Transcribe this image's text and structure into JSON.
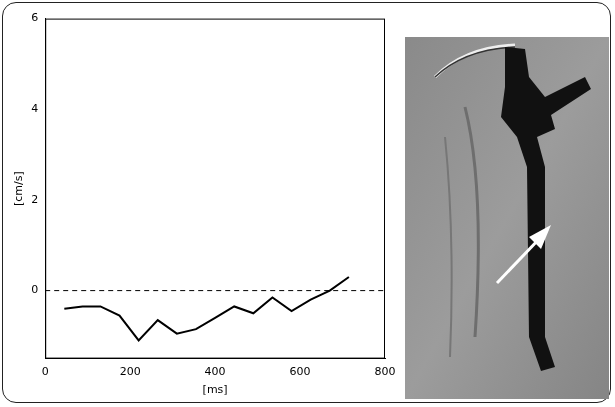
{
  "chart_data": {
    "type": "line",
    "x_label": "[ms]",
    "y_label": "[cm/s]",
    "x": [
      45,
      88,
      130,
      175,
      220,
      265,
      310,
      355,
      400,
      445,
      490,
      535,
      580,
      625,
      670,
      715
    ],
    "values": [
      -0.4,
      -0.35,
      -0.35,
      -0.55,
      -1.1,
      -0.65,
      -0.95,
      -0.85,
      -0.6,
      -0.35,
      -0.5,
      -0.15,
      -0.45,
      -0.2,
      0.0,
      0.3
    ],
    "color": "#000000",
    "xlim": [
      0,
      800
    ],
    "xticks": [
      0,
      200,
      400,
      600,
      800
    ],
    "ylim": [
      -1.5,
      6
    ],
    "yticks": [
      0,
      2,
      4,
      6
    ],
    "hline": 0,
    "grid": false
  }
}
